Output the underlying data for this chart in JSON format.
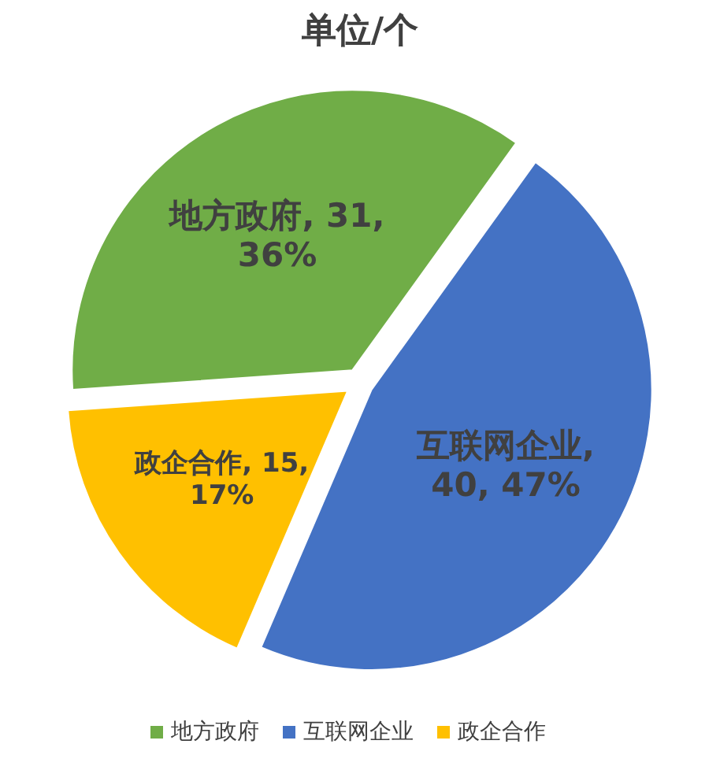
{
  "chart_data": {
    "type": "pie",
    "title": "单位/个",
    "categories": [
      "地方政府",
      "互联网企业",
      "政企合作"
    ],
    "values": [
      31,
      40,
      15
    ],
    "value_labels": [
      "地方政府, 31, 36%",
      "互联网企业, 40, 47%",
      "政企合作, 15, 17%"
    ],
    "colors": [
      "#70ad47",
      "#4472c4",
      "#ffc000"
    ],
    "legend": "bottom"
  }
}
